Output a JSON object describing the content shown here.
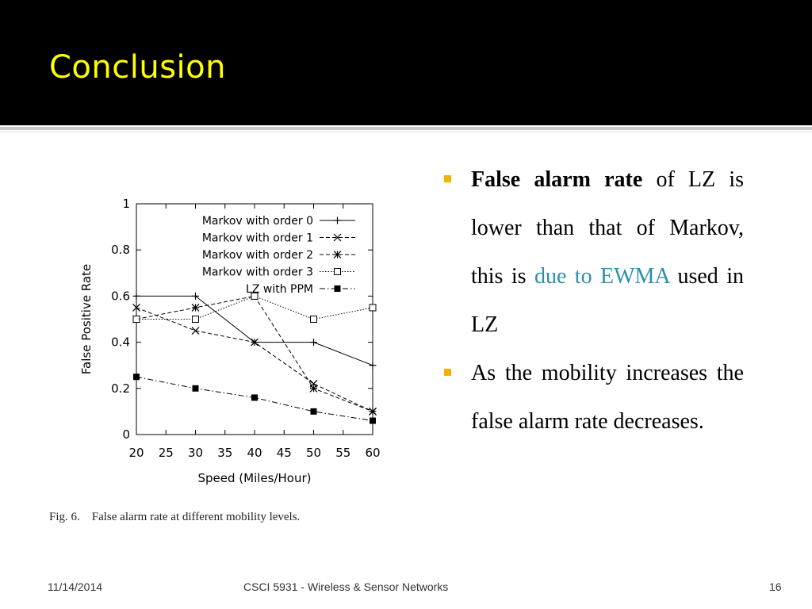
{
  "slide": {
    "title": "Conclusion",
    "caption": "Fig. 6.    False alarm rate at different mobility levels.",
    "bullets": [
      {
        "bold": "False alarm rate",
        "text_before_link": " of LZ is lower than that of Markov, this is ",
        "link": "due to EWMA",
        "text_after_link": " used in LZ"
      },
      {
        "text": "As the mobility increases the false alarm rate decreases."
      }
    ],
    "colors": {
      "title": "#ffff00",
      "title_bar": "#000000",
      "bullet_marker": "#f0b400",
      "accent_text": "#2d8fa8"
    }
  },
  "footer": {
    "date": "11/14/2014",
    "course": "CSCI 5931 - Wireless & Sensor Networks",
    "page": "16"
  },
  "chart_data": {
    "type": "line",
    "xlabel": "Speed (Miles/Hour)",
    "ylabel": "False Positive Rate",
    "xlim": [
      20,
      60
    ],
    "ylim": [
      0,
      1
    ],
    "xticks": [
      20,
      25,
      30,
      35,
      40,
      45,
      50,
      55,
      60
    ],
    "yticks": [
      0,
      0.2,
      0.4,
      0.6,
      0.8,
      1
    ],
    "ytick_labels": [
      "0",
      "0.2",
      "0.4",
      "0.6",
      "0.8",
      "1"
    ],
    "grid": false,
    "legend": "top-right",
    "x": [
      20,
      30,
      40,
      50,
      60
    ],
    "series": [
      {
        "name": "Markov with order 0",
        "values": [
          0.6,
          0.6,
          0.4,
          0.4,
          0.3
        ],
        "marker": "plus",
        "dash": "solid"
      },
      {
        "name": "Markov with order 1",
        "values": [
          0.55,
          0.45,
          0.4,
          0.22,
          0.1
        ],
        "marker": "x",
        "dash": "dashed"
      },
      {
        "name": "Markov with order 2",
        "values": [
          0.5,
          0.55,
          0.6,
          0.2,
          0.1
        ],
        "marker": "star",
        "dash": "dashed"
      },
      {
        "name": "Markov with order 3",
        "values": [
          0.5,
          0.5,
          0.6,
          0.5,
          0.55
        ],
        "marker": "square",
        "dash": "dotted"
      },
      {
        "name": "LZ with PPM",
        "values": [
          0.25,
          0.2,
          0.16,
          0.1,
          0.06
        ],
        "marker": "filled-square",
        "dash": "dashdot"
      }
    ]
  }
}
